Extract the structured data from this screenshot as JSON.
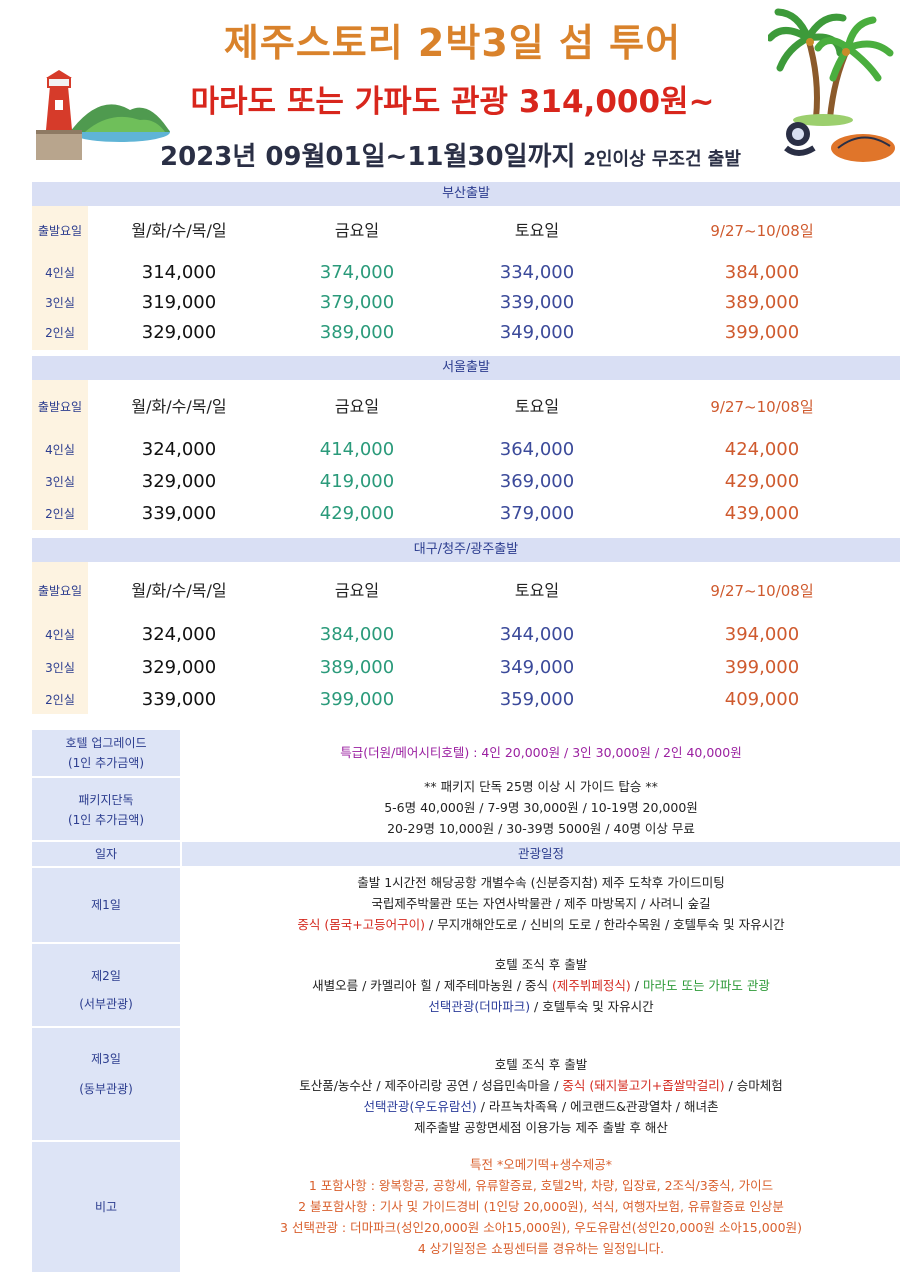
{
  "header": {
    "title": "제주스토리 2박3일  섬 투어",
    "subtitle": "마라도 또는 가파도 관광 314,000원~",
    "period": "2023년 09월01일~11월30일까지",
    "condition": "2인이상 무조건 출발"
  },
  "sections": [
    {
      "title": "부산출발",
      "header_row": [
        "출발요일",
        "월/화/수/목/일",
        "금요일",
        "토요일",
        "9/27~10/08일"
      ],
      "rows": [
        [
          "4인실",
          "314,000",
          "374,000",
          "334,000",
          "384,000"
        ],
        [
          "3인실",
          "319,000",
          "379,000",
          "339,000",
          "389,000"
        ],
        [
          "2인실",
          "329,000",
          "389,000",
          "349,000",
          "399,000"
        ]
      ]
    },
    {
      "title": "서울출발",
      "header_row": [
        "출발요일",
        "월/화/수/목/일",
        "금요일",
        "토요일",
        "9/27~10/08일"
      ],
      "rows": [
        [
          "4인실",
          "324,000",
          "414,000",
          "364,000",
          "424,000"
        ],
        [
          "3인실",
          "329,000",
          "419,000",
          "369,000",
          "429,000"
        ],
        [
          "2인실",
          "339,000",
          "429,000",
          "379,000",
          "439,000"
        ]
      ]
    },
    {
      "title": "대구/청주/광주출발",
      "header_row": [
        "출발요일",
        "월/화/수/목/일",
        "금요일",
        "토요일",
        "9/27~10/08일"
      ],
      "rows": [
        [
          "4인실",
          "324,000",
          "384,000",
          "344,000",
          "394,000"
        ],
        [
          "3인실",
          "329,000",
          "389,000",
          "349,000",
          "399,000"
        ],
        [
          "2인실",
          "339,000",
          "399,000",
          "359,000",
          "409,000"
        ]
      ]
    }
  ],
  "hotel_upgrade": {
    "label_line1": "호텔 업그레이드",
    "label_line2": "(1인 추가금액)",
    "text": "특급(더원/메어시티호텔) : 4인 20,000원 / 3인 30,000원 / 2인 40,000원"
  },
  "package_solo": {
    "label_line1": "패키지단독",
    "label_line2": "(1인 추가금액)",
    "line1": "** 패키지 단독 25명 이상 시 가이드 탑승 **",
    "line2": "5-6명 40,000원 / 7-9명 30,000원 / 10-19명 20,000원",
    "line3": "20-29명 10,000원 / 30-39명 5000원 / 40명 이상 무료"
  },
  "itinerary": {
    "label_day": "일자",
    "label_schedule": "관광일정",
    "day1": {
      "label": "제1일",
      "line1": "출발 1시간전 해당공항 개별수속 (신분증지참) 제주 도착후 가이드미팅",
      "line2": "국립제주박물관 또는 자연사박물관 / 제주 마방목지 / 사려니 숲길",
      "line3_red": "중식 (몸국+고등어구이)",
      "line3_rest": " / 무지개해안도로 / 신비의 도로 / 한라수목원 / 호텔투숙 및 자유시간"
    },
    "day2": {
      "label": "제2일",
      "sub": "(서부관광)",
      "line1": "호텔 조식 후 출발",
      "line2_a": "새별오름 / 카멜리아 힐 / 제주테마농원 / 중식 ",
      "line2_red": "(제주뷔페정식)",
      "line2_b": " / ",
      "line2_green": "마라도 또는 가파도 관광",
      "line3_blue": "선택관광(더마파크)",
      "line3_rest": " / 호텔투숙 및 자유시간"
    },
    "day3": {
      "label": "제3일",
      "sub": "(동부관광)",
      "line1": "호텔 조식 후 출발",
      "line2_a": "토산품/농수산 / 제주아리랑 공연 / 성읍민속마을 / ",
      "line2_red": "중식 (돼지불고기+좁쌀막걸리)",
      "line2_b": " / 승마체험",
      "line3_blue": "선택관광(우도유람선)",
      "line3_rest": " / 라프녹차족욕 / 에코랜드&관광열차 / 해녀촌",
      "line4": "제주출발 공항면세점 이용가능 제주 출발 후 해산"
    },
    "remarks": {
      "label": "비고",
      "line1": "특전 *오메기떡+생수제공*",
      "line2": "1 포함사항 : 왕복항공, 공항세, 유류할증료, 호텔2박, 차량, 입장료, 2조식/3중식, 가이드",
      "line3": "2 불포함사항 : 기사 및 가이드경비 (1인당 20,000원), 석식, 여행자보험, 유류할증료 인상분",
      "line4": "3 선택관광 : 더마파크(성인20,000원 소아15,000원), 우도유람선(성인20,000원 소아15,000원)",
      "line5": "4 상기일정은 쇼핑센터를 경유하는 일정입니다."
    }
  },
  "colors": {
    "title_orange": "#d9822b",
    "subtitle_red": "#d8261c",
    "header_band": "#d9dff4",
    "friday_green": "#2a9a7a",
    "saturday_blue": "#3b4a9a",
    "peak_orange": "#cf5a2e"
  },
  "icons": [
    "lighthouse-island-illustration",
    "palm-trees-illustration",
    "haenyeo-diver-illustration"
  ]
}
